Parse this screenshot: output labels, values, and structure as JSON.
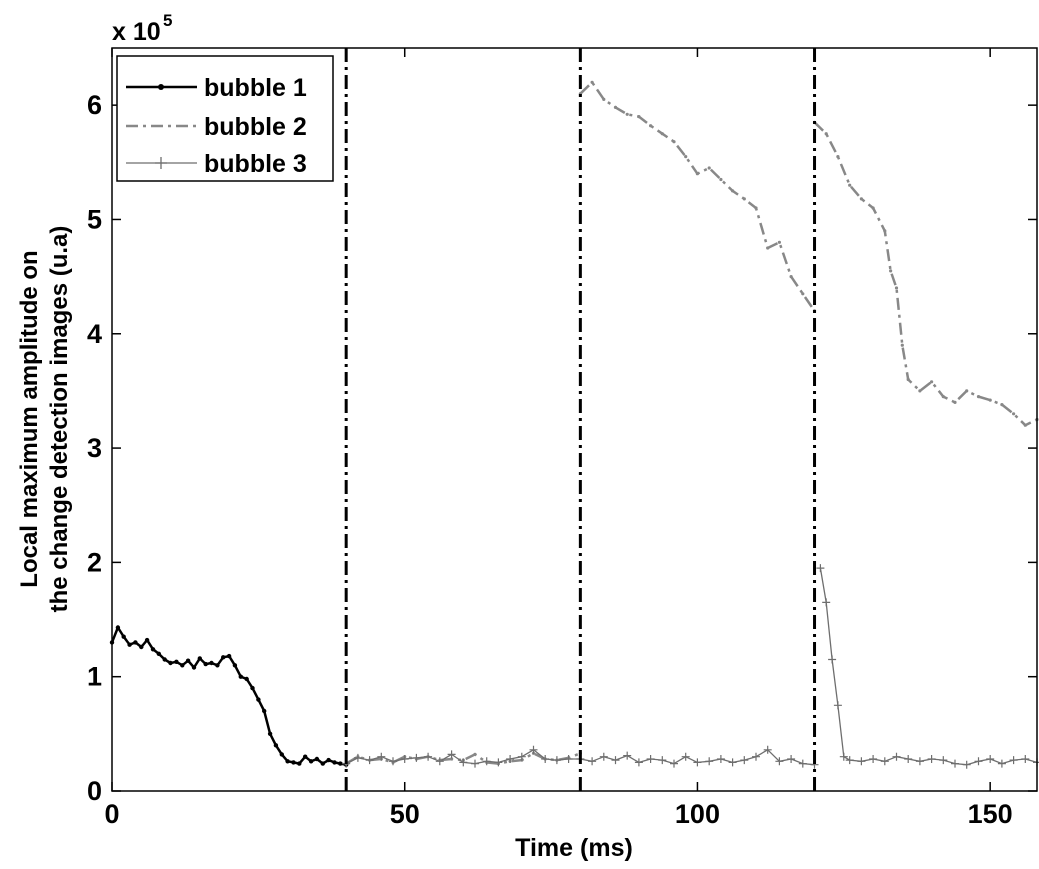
{
  "chart_data": {
    "type": "line",
    "title": "",
    "xlabel": "Time (ms)",
    "ylabel_lines": [
      "Local maximum amplitude on",
      "the change detection images (u.a)"
    ],
    "y_exponent_base": "x 10",
    "y_exponent_power": "5",
    "xlim": [
      0,
      158
    ],
    "ylim": [
      0,
      650000
    ],
    "xticks": [
      0,
      50,
      100,
      150
    ],
    "yticks": [
      0,
      100000,
      200000,
      300000,
      400000,
      500000,
      600000
    ],
    "ytick_labels": [
      "0",
      "1",
      "2",
      "3",
      "4",
      "5",
      "6"
    ],
    "grid": false,
    "legend_position": "top-left",
    "vertical_lines": [
      40,
      80,
      120
    ],
    "series": [
      {
        "name": "bubble 1",
        "color": "#000000",
        "style": "solid-dots",
        "x": [
          0,
          1,
          2,
          3,
          4,
          5,
          6,
          7,
          8,
          9,
          10,
          11,
          12,
          13,
          14,
          15,
          16,
          17,
          18,
          19,
          20,
          21,
          22,
          23,
          24,
          25,
          26,
          27,
          28,
          29,
          30,
          31,
          32,
          33,
          34,
          35,
          36,
          37,
          38,
          39,
          40
        ],
        "y": [
          130000,
          143000,
          135000,
          128000,
          130000,
          126000,
          132000,
          124000,
          120000,
          115000,
          112000,
          113000,
          110000,
          114000,
          108000,
          116000,
          111000,
          112000,
          110000,
          117000,
          118000,
          110000,
          100000,
          98000,
          90000,
          80000,
          70000,
          50000,
          40000,
          32000,
          26000,
          25000,
          24000,
          30000,
          26000,
          28000,
          24000,
          27000,
          25000,
          24000,
          23000
        ]
      },
      {
        "name": "bubble 2",
        "color": "#888888",
        "style": "dash-dot",
        "x": [
          40,
          42,
          44,
          46,
          48,
          50,
          52,
          54,
          56,
          58,
          60,
          62,
          64,
          66,
          68,
          70,
          72,
          74,
          76,
          78,
          80,
          null,
          80,
          82,
          84,
          86,
          88,
          90,
          92,
          94,
          96,
          98,
          100,
          102,
          104,
          106,
          108,
          110,
          112,
          114,
          116,
          118,
          120,
          null,
          120,
          122,
          124,
          126,
          128,
          130,
          132,
          133,
          134,
          135,
          136,
          138,
          140,
          142,
          144,
          146,
          148,
          150,
          152,
          154,
          156,
          158
        ],
        "y": [
          24000,
          30000,
          27000,
          28000,
          25000,
          30000,
          28000,
          30000,
          27000,
          28000,
          27000,
          32000,
          25000,
          24000,
          26000,
          27000,
          33000,
          28000,
          27000,
          29000,
          33000,
          null,
          610000,
          620000,
          605000,
          598000,
          592000,
          590000,
          582000,
          575000,
          568000,
          555000,
          540000,
          545000,
          535000,
          525000,
          518000,
          510000,
          475000,
          480000,
          450000,
          435000,
          420000,
          null,
          585000,
          575000,
          555000,
          530000,
          518000,
          510000,
          490000,
          455000,
          440000,
          390000,
          360000,
          350000,
          358000,
          345000,
          340000,
          350000,
          345000,
          342000,
          338000,
          330000,
          320000,
          325000
        ]
      },
      {
        "name": "bubble 3",
        "color": "#6e6e6e",
        "style": "solid-plus",
        "x": [
          40,
          42,
          44,
          46,
          48,
          50,
          52,
          54,
          56,
          58,
          60,
          62,
          64,
          66,
          68,
          70,
          72,
          74,
          76,
          78,
          80,
          82,
          84,
          86,
          88,
          90,
          92,
          94,
          96,
          98,
          100,
          102,
          104,
          106,
          108,
          110,
          112,
          114,
          116,
          118,
          120,
          null,
          121,
          122,
          123,
          124,
          125,
          126,
          128,
          130,
          132,
          134,
          136,
          138,
          140,
          142,
          144,
          146,
          148,
          150,
          152,
          154,
          156,
          158
        ],
        "y": [
          24000,
          29000,
          27000,
          30000,
          26000,
          28000,
          29000,
          30000,
          26000,
          32000,
          25000,
          24000,
          26000,
          25000,
          28000,
          30000,
          36000,
          28000,
          27000,
          28000,
          28000,
          26000,
          30000,
          27000,
          31000,
          25000,
          28000,
          27000,
          24000,
          30000,
          25000,
          26000,
          28000,
          25000,
          27000,
          30000,
          36000,
          26000,
          28000,
          24000,
          23000,
          null,
          195000,
          165000,
          115000,
          75000,
          30000,
          27000,
          26000,
          28000,
          26000,
          30000,
          28000,
          26000,
          28000,
          27000,
          24000,
          23000,
          26000,
          28000,
          24000,
          27000,
          28000,
          25000
        ]
      }
    ]
  }
}
